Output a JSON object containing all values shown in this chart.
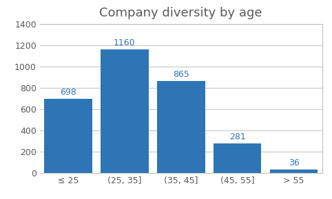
{
  "title": "Company diversity by age",
  "categories": [
    "≤ 25",
    "(25, 35]",
    "(35, 45]",
    "(45, 55]",
    "> 55"
  ],
  "values": [
    698,
    1160,
    865,
    281,
    36
  ],
  "bar_color": "#2E75B6",
  "ylim": [
    0,
    1400
  ],
  "yticks": [
    0,
    200,
    400,
    600,
    800,
    1000,
    1200,
    1400
  ],
  "background_color": "#FFFFFF",
  "plot_bg_color": "#FFFFFF",
  "title_fontsize": 13,
  "label_fontsize": 9,
  "tick_fontsize": 9,
  "tick_color": "#595959",
  "grid_color": "#C8C8C8",
  "border_color": "#BFBFBF"
}
